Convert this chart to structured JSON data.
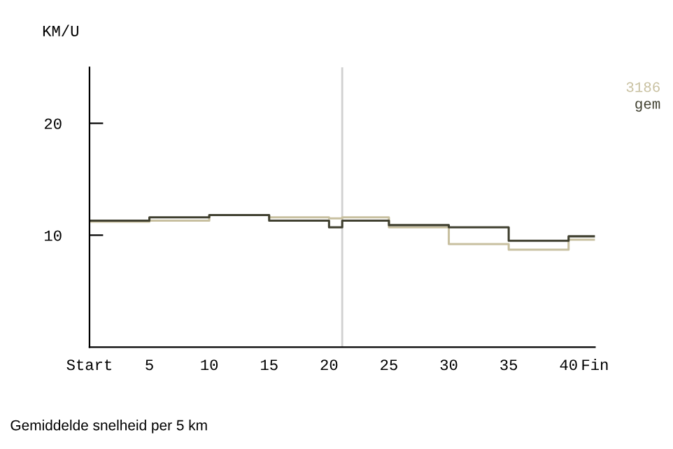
{
  "chart_data": {
    "type": "step",
    "ylabel": "KM/U",
    "x": [
      0,
      5,
      10,
      15,
      20,
      21.1,
      25,
      30,
      35,
      40,
      42.2
    ],
    "series": [
      {
        "name": "3186",
        "color": "#c8c0a0",
        "values": [
          11.2,
          11.3,
          11.8,
          11.6,
          11.5,
          11.6,
          10.7,
          9.2,
          8.7,
          9.6,
          9.6
        ]
      },
      {
        "name": "gem",
        "color": "#404030",
        "values": [
          11.3,
          11.6,
          11.8,
          11.3,
          10.7,
          11.3,
          10.9,
          10.7,
          9.5,
          9.9,
          9.9
        ]
      }
    ],
    "xlim": [
      0,
      42.2
    ],
    "xticks": [
      {
        "value": 0,
        "label": "Start"
      },
      5,
      10,
      15,
      20,
      25,
      30,
      35,
      40,
      {
        "value": 42.2,
        "label": "Fin"
      }
    ],
    "ylim": [
      0,
      25
    ],
    "yticks": [
      10,
      20
    ],
    "ref_lines": [
      {
        "axis": "x",
        "value": 21.1,
        "color": "#d0d0d0"
      }
    ],
    "legend": "top right",
    "grid": false,
    "annotations": [
      "Gemiddelde snelheid per 5 km"
    ]
  }
}
